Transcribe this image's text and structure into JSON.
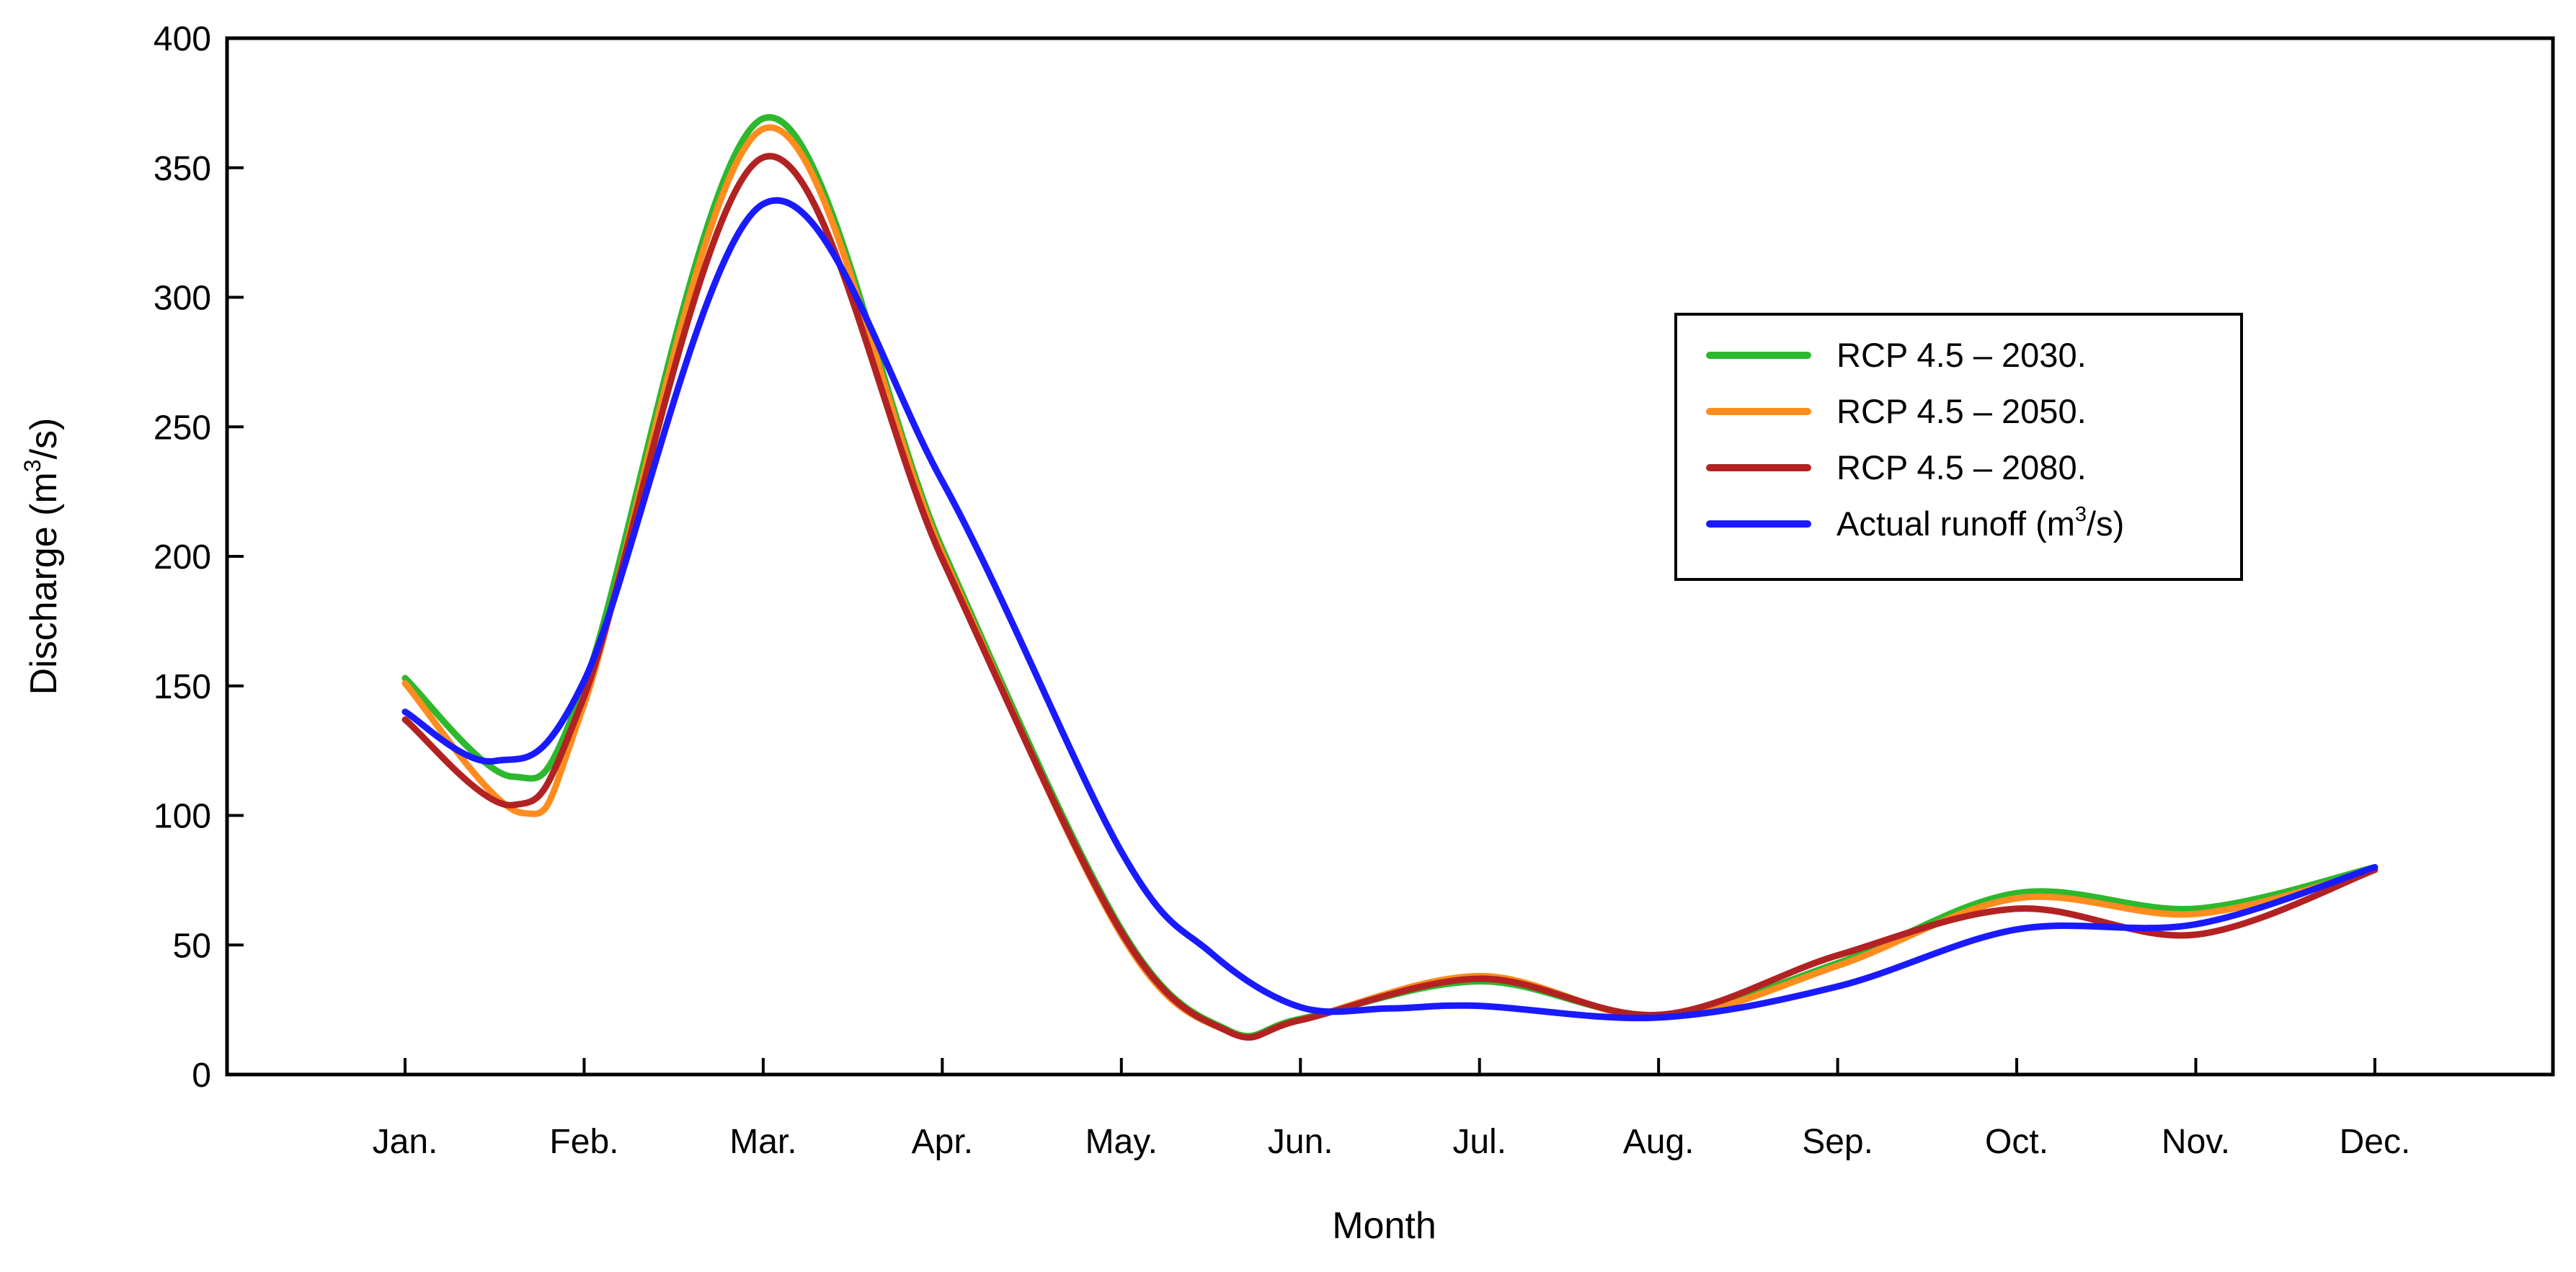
{
  "chart_data": {
    "type": "line",
    "title": "",
    "xlabel": "Month",
    "ylabel": "Discharge (m³/s)",
    "categories": [
      "Jan.",
      "Feb.",
      "Mar.",
      "Apr.",
      "May.",
      "Jun.",
      "Jul.",
      "Aug.",
      "Sep.",
      "Oct.",
      "Nov.",
      "Dec."
    ],
    "ylim": [
      0,
      400
    ],
    "y_ticks": [
      0,
      50,
      100,
      150,
      200,
      250,
      300,
      350,
      400
    ],
    "grid": false,
    "legend_position": "upper-right",
    "axis_color": "#000000",
    "series": [
      {
        "name": "RCP 4.5 – 2030.",
        "color": "#2db82d",
        "values": [
          153,
          150,
          369,
          203,
          56,
          22,
          36,
          23,
          43,
          70,
          64,
          80
        ],
        "curve_samples": [
          [
            0,
            153
          ],
          [
            0.6,
            115
          ],
          [
            1,
            150
          ],
          [
            2,
            369
          ],
          [
            3,
            203
          ],
          [
            4,
            56
          ],
          [
            4.6,
            17
          ],
          [
            5,
            21.5
          ],
          [
            6,
            36
          ],
          [
            7,
            23
          ],
          [
            8,
            43
          ],
          [
            9,
            70
          ],
          [
            10,
            64
          ],
          [
            11,
            80
          ]
        ]
      },
      {
        "name": "RCP 4.5 – 2050.",
        "color": "#ff8c1e",
        "values": [
          151,
          143,
          365,
          201,
          54,
          21,
          38,
          22,
          42,
          68,
          62,
          79
        ],
        "curve_samples": [
          [
            0,
            151
          ],
          [
            0.65,
            101
          ],
          [
            1,
            143
          ],
          [
            2,
            365
          ],
          [
            3,
            201
          ],
          [
            4,
            54
          ],
          [
            4.6,
            16.5
          ],
          [
            5,
            21
          ],
          [
            6,
            38
          ],
          [
            7,
            22
          ],
          [
            8,
            42
          ],
          [
            9,
            68
          ],
          [
            10,
            62
          ],
          [
            11,
            79
          ]
        ]
      },
      {
        "name": "RCP 4.5 – 2080.",
        "color": "#b22222",
        "values": [
          137,
          146,
          354,
          199,
          55,
          21,
          37,
          23,
          46,
          64,
          54,
          79
        ],
        "curve_samples": [
          [
            0,
            137
          ],
          [
            0.6,
            104
          ],
          [
            1,
            146
          ],
          [
            2,
            354
          ],
          [
            3,
            199
          ],
          [
            4,
            55
          ],
          [
            4.6,
            16.5
          ],
          [
            5,
            21
          ],
          [
            6,
            37
          ],
          [
            7,
            23
          ],
          [
            8,
            46
          ],
          [
            9,
            64
          ],
          [
            10,
            54
          ],
          [
            11,
            79
          ]
        ]
      },
      {
        "name": "Actual runoff (m³/s)",
        "color": "#1a1aff",
        "values": [
          140,
          152,
          336,
          229,
          86,
          26,
          27,
          22,
          34,
          56,
          58,
          80
        ],
        "curve_samples": [
          [
            0,
            140
          ],
          [
            0.5,
            121
          ],
          [
            1,
            152
          ],
          [
            2,
            336
          ],
          [
            3,
            229
          ],
          [
            4,
            86
          ],
          [
            4.5,
            47
          ],
          [
            5,
            26
          ],
          [
            5.5,
            25.5
          ],
          [
            6,
            26.5
          ],
          [
            7,
            22
          ],
          [
            8,
            34
          ],
          [
            9,
            56
          ],
          [
            10,
            58
          ],
          [
            11,
            80
          ]
        ]
      }
    ]
  }
}
